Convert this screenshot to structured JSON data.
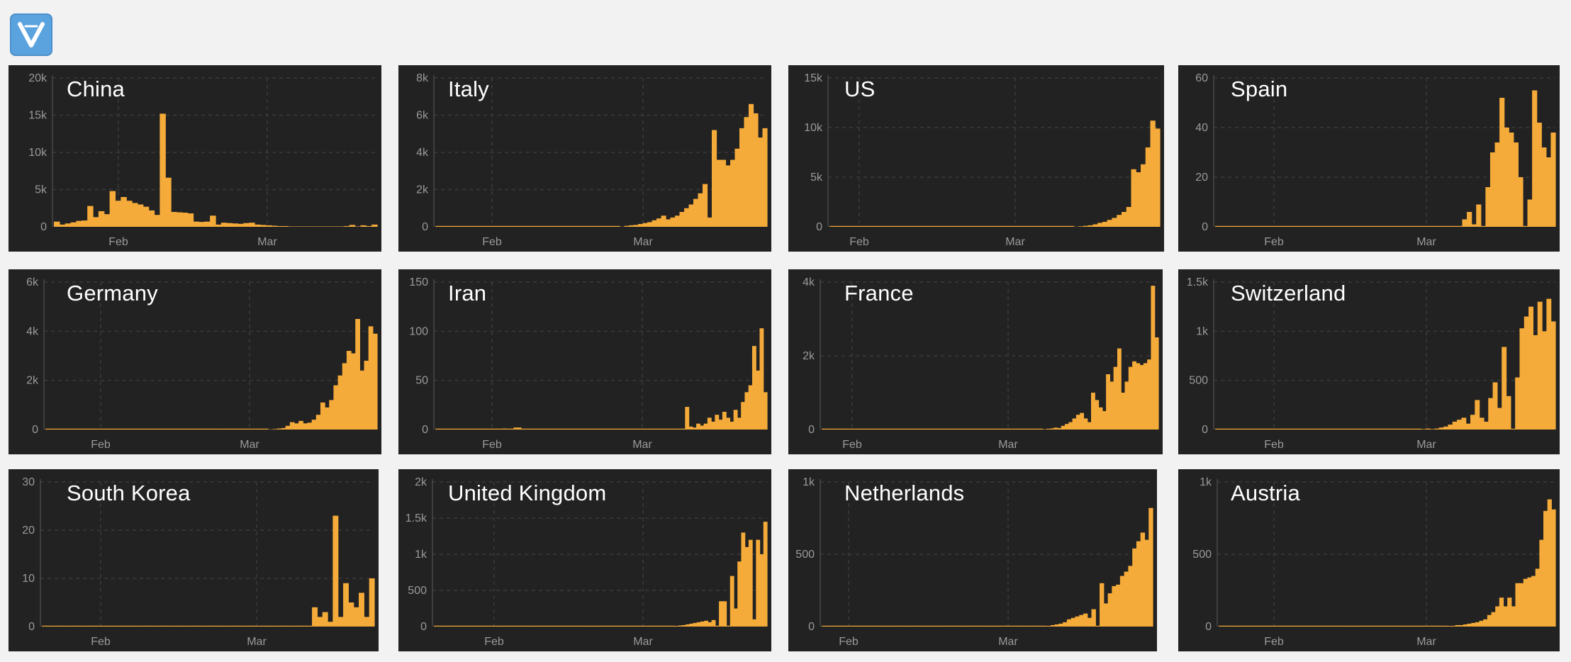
{
  "logo": {
    "name": "app-logo-icon",
    "color": "#5aa3df"
  },
  "colors": {
    "background": "#f2f2f2",
    "panel": "#222222",
    "bar": "#f5ab3a",
    "grid": "#3a3a3a",
    "tick": "#9a9a9a"
  },
  "chart_data": [
    {
      "type": "bar",
      "title": "China",
      "x_ticks": [
        "Feb",
        "Mar"
      ],
      "y_ticks": [
        "0",
        "5k",
        "10k",
        "15k",
        "20k"
      ],
      "ylim": [
        0,
        20000
      ],
      "grid": true,
      "values": [
        700,
        300,
        450,
        600,
        800,
        850,
        2800,
        1300,
        2100,
        1700,
        4800,
        3500,
        4000,
        3500,
        3200,
        3000,
        2700,
        2200,
        1600,
        15200,
        6600,
        2000,
        1950,
        1900,
        1800,
        700,
        650,
        700,
        1500,
        300,
        550,
        500,
        450,
        400,
        500,
        550,
        300,
        250,
        200,
        150,
        100,
        100,
        50,
        50,
        50,
        50,
        50,
        50,
        50,
        50,
        50,
        50,
        100,
        250,
        50,
        200,
        100,
        300
      ]
    },
    {
      "type": "bar",
      "title": "Italy",
      "x_ticks": [
        "Feb",
        "Mar"
      ],
      "y_ticks": [
        "0",
        "2k",
        "4k",
        "6k",
        "8k"
      ],
      "ylim": [
        0,
        8000
      ],
      "grid": true,
      "values": [
        0,
        0,
        0,
        0,
        0,
        0,
        0,
        0,
        0,
        0,
        0,
        0,
        0,
        0,
        0,
        0,
        0,
        0,
        0,
        0,
        0,
        0,
        0,
        0,
        0,
        0,
        0,
        0,
        0,
        0,
        0,
        0,
        0,
        0,
        0,
        0,
        0,
        0,
        0,
        0,
        10,
        50,
        80,
        100,
        150,
        200,
        250,
        350,
        450,
        600,
        400,
        500,
        600,
        800,
        1000,
        1200,
        1500,
        1800,
        2300,
        500,
        5200,
        3600,
        3600,
        3300,
        3600,
        4200,
        5300,
        5900,
        6600,
        6100,
        4800,
        5300
      ]
    },
    {
      "type": "bar",
      "title": "US",
      "x_ticks": [
        "Feb",
        "Mar"
      ],
      "y_ticks": [
        "0",
        "5k",
        "10k",
        "15k"
      ],
      "ylim": [
        0,
        15000
      ],
      "grid": true,
      "values": [
        0,
        0,
        0,
        0,
        0,
        0,
        0,
        0,
        0,
        0,
        0,
        0,
        0,
        0,
        0,
        0,
        0,
        0,
        0,
        0,
        0,
        0,
        0,
        0,
        0,
        0,
        0,
        0,
        0,
        0,
        0,
        0,
        0,
        0,
        0,
        0,
        0,
        0,
        0,
        0,
        0,
        0,
        0,
        0,
        0,
        0,
        0,
        0,
        0,
        0,
        0,
        20,
        50,
        100,
        150,
        250,
        400,
        500,
        700,
        900,
        1200,
        1500,
        2000,
        5800,
        5500,
        6300,
        8000,
        10700,
        9900
      ]
    },
    {
      "type": "bar",
      "title": "Spain",
      "x_ticks": [
        "Feb",
        "Mar"
      ],
      "y_ticks": [
        "0",
        "20",
        "40",
        "60"
      ],
      "ylim": [
        0,
        60
      ],
      "grid": true,
      "values": [
        0,
        0,
        0,
        0,
        0,
        0,
        0,
        0,
        0,
        0,
        0,
        0,
        0,
        0,
        0,
        0,
        0,
        0,
        0,
        0,
        0,
        0,
        0,
        0,
        0,
        0,
        0,
        0,
        0,
        0,
        0,
        0,
        0,
        0,
        0,
        0,
        0,
        0,
        0,
        0,
        0,
        0,
        0,
        0,
        0,
        0,
        0,
        0,
        0,
        0,
        0,
        0,
        0,
        3,
        6,
        1,
        9,
        0,
        16,
        30,
        34,
        52,
        40,
        38,
        34,
        20,
        0,
        11,
        55,
        42,
        32,
        28,
        38
      ]
    },
    {
      "type": "bar",
      "title": "Germany",
      "x_ticks": [
        "Feb",
        "Mar"
      ],
      "y_ticks": [
        "0",
        "2k",
        "4k",
        "6k"
      ],
      "ylim": [
        0,
        6000
      ],
      "grid": true,
      "values": [
        0,
        0,
        0,
        0,
        0,
        0,
        0,
        0,
        0,
        0,
        0,
        0,
        0,
        0,
        0,
        0,
        0,
        0,
        0,
        0,
        0,
        0,
        0,
        0,
        0,
        0,
        0,
        0,
        0,
        0,
        0,
        0,
        0,
        0,
        0,
        0,
        0,
        0,
        0,
        0,
        0,
        0,
        0,
        0,
        0,
        0,
        0,
        0,
        0,
        0,
        0,
        10,
        20,
        40,
        60,
        150,
        300,
        250,
        350,
        250,
        280,
        400,
        600,
        1100,
        900,
        1200,
        1800,
        2200,
        2700,
        3200,
        3100,
        4500,
        2400,
        2800,
        4200,
        3900
      ]
    },
    {
      "type": "bar",
      "title": "Iran",
      "x_ticks": [
        "Feb",
        "Mar"
      ],
      "y_ticks": [
        "0",
        "50",
        "100",
        "150"
      ],
      "ylim": [
        0,
        150
      ],
      "grid": true,
      "values": [
        0,
        0,
        0,
        0,
        0,
        0,
        0,
        0,
        0,
        0,
        0,
        0,
        0,
        0,
        0,
        0,
        0,
        0,
        1,
        0,
        0,
        2,
        2,
        0,
        0,
        0,
        0,
        0,
        0,
        0,
        0,
        0,
        0,
        0,
        0,
        0,
        0,
        0,
        0,
        0,
        0,
        0,
        0,
        0,
        0,
        0,
        0,
        0,
        0,
        0,
        0,
        0,
        0,
        0,
        0,
        0,
        0,
        0,
        0,
        0,
        0,
        0,
        0,
        0,
        0,
        0,
        0,
        23,
        3,
        2,
        6,
        4,
        6,
        12,
        8,
        15,
        10,
        18,
        12,
        8,
        20,
        12,
        28,
        38,
        45,
        85,
        60,
        103,
        38
      ]
    },
    {
      "type": "bar",
      "title": "France",
      "x_ticks": [
        "Feb",
        "Mar"
      ],
      "y_ticks": [
        "0",
        "2k",
        "4k"
      ],
      "ylim": [
        0,
        4000
      ],
      "grid": true,
      "values": [
        0,
        0,
        0,
        0,
        0,
        0,
        0,
        0,
        0,
        0,
        0,
        0,
        0,
        0,
        0,
        0,
        0,
        0,
        0,
        0,
        0,
        0,
        0,
        0,
        0,
        0,
        0,
        0,
        0,
        0,
        0,
        0,
        0,
        0,
        0,
        0,
        0,
        0,
        0,
        0,
        0,
        0,
        0,
        0,
        0,
        0,
        0,
        0,
        0,
        0,
        0,
        0,
        0,
        0,
        0,
        0,
        0,
        0,
        0,
        10,
        20,
        30,
        50,
        40,
        100,
        150,
        200,
        300,
        400,
        450,
        300,
        200,
        1000,
        800,
        600,
        500,
        1500,
        1300,
        1700,
        2200,
        1000,
        1300,
        1700,
        1850,
        1800,
        1750,
        1800,
        1900,
        3900,
        2500
      ]
    },
    {
      "type": "bar",
      "title": "Switzerland",
      "x_ticks": [
        "Feb",
        "Mar"
      ],
      "y_ticks": [
        "0",
        "500",
        "1k",
        "1.5k"
      ],
      "ylim": [
        0,
        1500
      ],
      "grid": true,
      "values": [
        0,
        0,
        0,
        0,
        0,
        0,
        0,
        0,
        0,
        0,
        0,
        0,
        0,
        0,
        0,
        0,
        0,
        0,
        0,
        0,
        0,
        0,
        0,
        0,
        0,
        0,
        0,
        0,
        0,
        0,
        0,
        0,
        0,
        0,
        0,
        0,
        0,
        0,
        0,
        0,
        0,
        0,
        0,
        0,
        0,
        0,
        5,
        10,
        5,
        10,
        20,
        30,
        50,
        80,
        100,
        120,
        60,
        150,
        300,
        120,
        80,
        320,
        480,
        220,
        840,
        340,
        0,
        530,
        1030,
        1150,
        1250,
        960,
        1300,
        1000,
        1330,
        1100
      ]
    },
    {
      "type": "bar",
      "title": "South Korea",
      "x_ticks": [
        "Feb",
        "Mar"
      ],
      "y_ticks": [
        "0",
        "10",
        "20",
        "30"
      ],
      "ylim": [
        0,
        30
      ],
      "grid": true,
      "values": [
        0,
        0,
        0,
        0,
        0,
        0,
        0,
        0,
        0,
        0,
        0,
        0,
        0,
        0,
        0,
        0,
        0,
        0,
        0,
        0,
        0,
        0,
        0,
        0,
        0,
        0,
        0,
        0,
        0,
        0,
        0,
        0,
        0,
        0,
        0,
        0,
        0,
        0,
        0,
        0,
        0,
        0,
        0,
        0,
        0,
        0,
        0,
        0,
        0,
        0,
        0,
        0,
        4,
        2,
        3,
        1,
        23,
        2,
        9,
        5,
        4,
        7,
        2,
        10
      ]
    },
    {
      "type": "bar",
      "title": "United Kingdom",
      "x_ticks": [
        "Feb",
        "Mar"
      ],
      "y_ticks": [
        "0",
        "500",
        "1k",
        "1.5k",
        "2k"
      ],
      "ylim": [
        0,
        2000
      ],
      "grid": true,
      "values": [
        0,
        0,
        0,
        0,
        0,
        0,
        0,
        0,
        0,
        0,
        0,
        0,
        0,
        0,
        0,
        0,
        0,
        0,
        0,
        0,
        0,
        0,
        0,
        0,
        0,
        0,
        0,
        0,
        0,
        0,
        0,
        0,
        0,
        0,
        0,
        0,
        0,
        0,
        0,
        0,
        0,
        0,
        0,
        0,
        0,
        0,
        0,
        0,
        0,
        0,
        0,
        0,
        0,
        0,
        0,
        0,
        0,
        0,
        0,
        0,
        0,
        0,
        0,
        0,
        0,
        10,
        15,
        20,
        30,
        40,
        50,
        60,
        70,
        80,
        60,
        90,
        0,
        350,
        350,
        0,
        700,
        250,
        900,
        1300,
        1100,
        1200,
        100,
        1200,
        1000,
        1450
      ]
    },
    {
      "type": "bar",
      "title": "Netherlands",
      "x_ticks": [
        "Feb",
        "Mar"
      ],
      "y_ticks": [
        "0",
        "500",
        "1k"
      ],
      "ylim": [
        0,
        1000
      ],
      "grid": true,
      "values": [
        0,
        0,
        0,
        0,
        0,
        0,
        0,
        0,
        0,
        0,
        0,
        0,
        0,
        0,
        0,
        0,
        0,
        0,
        0,
        0,
        0,
        0,
        0,
        0,
        0,
        0,
        0,
        0,
        0,
        0,
        0,
        0,
        0,
        0,
        0,
        0,
        0,
        0,
        0,
        0,
        0,
        0,
        0,
        0,
        0,
        0,
        0,
        0,
        0,
        0,
        0,
        0,
        0,
        0,
        0,
        5,
        10,
        15,
        20,
        30,
        50,
        60,
        70,
        80,
        90,
        60,
        120,
        0,
        300,
        160,
        230,
        280,
        290,
        350,
        380,
        420,
        540,
        590,
        650,
        600,
        820
      ]
    },
    {
      "type": "bar",
      "title": "Austria",
      "x_ticks": [
        "Feb",
        "Mar"
      ],
      "y_ticks": [
        "0",
        "500",
        "1k"
      ],
      "ylim": [
        0,
        1000
      ],
      "grid": true,
      "values": [
        0,
        0,
        0,
        0,
        0,
        0,
        0,
        0,
        0,
        0,
        0,
        0,
        0,
        0,
        0,
        0,
        0,
        0,
        0,
        0,
        0,
        0,
        0,
        0,
        0,
        0,
        0,
        0,
        0,
        0,
        0,
        0,
        0,
        0,
        0,
        0,
        0,
        0,
        0,
        0,
        0,
        0,
        0,
        0,
        0,
        0,
        0,
        0,
        0,
        0,
        0,
        0,
        0,
        0,
        0,
        0,
        0,
        5,
        5,
        10,
        10,
        15,
        20,
        25,
        30,
        40,
        50,
        80,
        100,
        140,
        200,
        140,
        200,
        140,
        300,
        300,
        330,
        340,
        350,
        400,
        600,
        800,
        880,
        810
      ]
    }
  ]
}
